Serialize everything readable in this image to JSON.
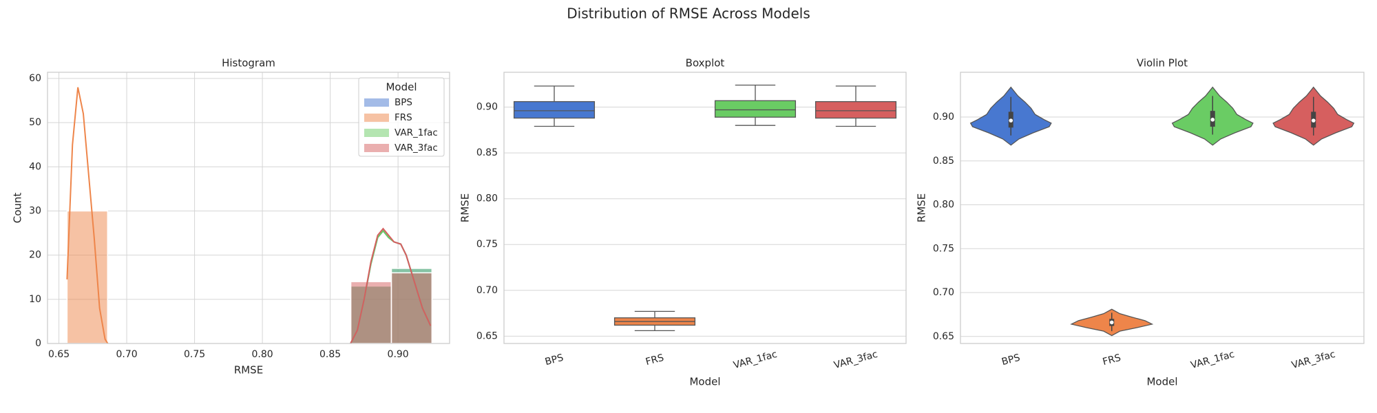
{
  "title": "Distribution of RMSE Across Models",
  "chart_data": [
    {
      "type": "histogram",
      "title": "Histogram",
      "x_label": "RMSE",
      "y_label": "Count",
      "bins": [
        0.656,
        0.6859,
        0.7158,
        0.7457,
        0.7756,
        0.8054,
        0.8353,
        0.8652,
        0.8951,
        0.925
      ],
      "series": [
        {
          "name": "BPS",
          "color": "#4878d0",
          "values": [
            0,
            0,
            0,
            0,
            0,
            0,
            0,
            13,
            17
          ],
          "kde": {
            "x": [
              0.865,
              0.87,
              0.875,
              0.88,
              0.885,
              0.889,
              0.893,
              0.897,
              0.902,
              0.906,
              0.912,
              0.918,
              0.924
            ],
            "y": [
              0,
              3,
              10,
              18,
              24,
              25.5,
              24,
              23,
              22.5,
              20,
              14,
              8,
              4
            ]
          }
        },
        {
          "name": "FRS",
          "color": "#ee854a",
          "values": [
            30,
            0,
            0,
            0,
            0,
            0,
            0,
            0,
            0
          ],
          "kde": {
            "x": [
              0.656,
              0.66,
              0.664,
              0.668,
              0.672,
              0.676,
              0.68,
              0.684,
              0.686
            ],
            "y": [
              14.5,
              45,
              58,
              52,
              38,
              24,
              8,
              1,
              0
            ]
          }
        },
        {
          "name": "VAR_1fac",
          "color": "#6acc64",
          "values": [
            0,
            0,
            0,
            0,
            0,
            0,
            0,
            13,
            17
          ],
          "kde": {
            "x": [
              0.865,
              0.87,
              0.875,
              0.88,
              0.885,
              0.889,
              0.893,
              0.897,
              0.902,
              0.906,
              0.912,
              0.918,
              0.924
            ],
            "y": [
              0,
              3,
              10,
              18,
              24,
              25.5,
              24,
              23,
              22.5,
              20,
              14,
              8,
              4
            ]
          }
        },
        {
          "name": "VAR_3fac",
          "color": "#d65f5f",
          "values": [
            0,
            0,
            0,
            0,
            0,
            0,
            0,
            14,
            16
          ],
          "kde": {
            "x": [
              0.865,
              0.87,
              0.875,
              0.88,
              0.885,
              0.889,
              0.893,
              0.897,
              0.902,
              0.906,
              0.912,
              0.918,
              0.924
            ],
            "y": [
              0,
              3,
              10,
              18.5,
              24.5,
              26,
              24.5,
              23,
              22.5,
              20,
              14,
              8,
              4
            ]
          }
        }
      ],
      "legend_title": "Model",
      "legend": "upper right",
      "grid": true,
      "xlim": [
        0.6416,
        0.938
      ],
      "xticks": [
        0.65,
        {
          "value": 0.7,
          "label": "0.70"
        },
        0.75,
        {
          "value": 0.8,
          "label": "0.80"
        },
        0.85,
        {
          "value": 0.9,
          "label": "0.90"
        }
      ],
      "ylim": [
        0,
        61.4
      ],
      "yticks": [
        0,
        10,
        20,
        30,
        40,
        50,
        60
      ]
    },
    {
      "type": "box",
      "title": "Boxplot",
      "x_label": "Model",
      "y_label": "RMSE",
      "categories": [
        "BPS",
        "FRS",
        "VAR_1fac",
        "VAR_3fac"
      ],
      "colors": [
        "#4878d0",
        "#ee854a",
        "#6acc64",
        "#d65f5f"
      ],
      "stats": [
        {
          "whislo": 0.879,
          "q1": 0.888,
          "med": 0.896,
          "q3": 0.906,
          "whishi": 0.923
        },
        {
          "whislo": 0.656,
          "q1": 0.662,
          "med": 0.666,
          "q3": 0.67,
          "whishi": 0.677
        },
        {
          "whislo": 0.88,
          "q1": 0.889,
          "med": 0.897,
          "q3": 0.907,
          "whishi": 0.924
        },
        {
          "whislo": 0.879,
          "q1": 0.888,
          "med": 0.896,
          "q3": 0.906,
          "whishi": 0.923
        }
      ],
      "grid": true,
      "ylim": [
        0.642,
        0.938
      ],
      "yticks": [
        0.65,
        {
          "value": 0.7,
          "label": "0.70"
        },
        0.75,
        {
          "value": 0.8,
          "label": "0.80"
        },
        0.85,
        {
          "value": 0.9,
          "label": "0.90"
        }
      ]
    },
    {
      "type": "violin",
      "title": "Violin Plot",
      "x_label": "Model",
      "y_label": "RMSE",
      "categories": [
        "BPS",
        "FRS",
        "VAR_1fac",
        "VAR_3fac"
      ],
      "colors": [
        "#4878d0",
        "#ee854a",
        "#6acc64",
        "#d65f5f"
      ],
      "stats": [
        {
          "whislo": 0.879,
          "q1": 0.888,
          "med": 0.896,
          "q3": 0.906,
          "whishi": 0.923
        },
        {
          "whislo": 0.656,
          "q1": 0.662,
          "med": 0.666,
          "q3": 0.67,
          "whishi": 0.677
        },
        {
          "whislo": 0.88,
          "q1": 0.889,
          "med": 0.897,
          "q3": 0.907,
          "whishi": 0.924
        },
        {
          "whislo": 0.879,
          "q1": 0.888,
          "med": 0.896,
          "q3": 0.906,
          "whishi": 0.923
        }
      ],
      "profiles": [
        {
          "y": [
            0.868,
            0.875,
            0.882,
            0.889,
            0.893,
            0.897,
            0.903,
            0.91,
            0.917,
            0.924,
            0.934
          ],
          "width": [
            0,
            0.08,
            0.22,
            0.38,
            0.4,
            0.33,
            0.24,
            0.2,
            0.14,
            0.07,
            0
          ]
        },
        {
          "y": [
            0.651,
            0.656,
            0.66,
            0.664,
            0.668,
            0.672,
            0.676,
            0.681
          ],
          "width": [
            0,
            0.08,
            0.25,
            0.4,
            0.33,
            0.2,
            0.08,
            0
          ]
        },
        {
          "y": [
            0.868,
            0.875,
            0.882,
            0.889,
            0.893,
            0.897,
            0.903,
            0.91,
            0.917,
            0.924,
            0.934
          ],
          "width": [
            0,
            0.08,
            0.22,
            0.38,
            0.4,
            0.33,
            0.24,
            0.2,
            0.14,
            0.07,
            0
          ]
        },
        {
          "y": [
            0.868,
            0.875,
            0.882,
            0.889,
            0.893,
            0.897,
            0.903,
            0.91,
            0.917,
            0.924,
            0.934
          ],
          "width": [
            0,
            0.08,
            0.22,
            0.38,
            0.4,
            0.33,
            0.24,
            0.2,
            0.14,
            0.07,
            0
          ]
        }
      ],
      "grid": true,
      "ylim": [
        0.642,
        0.951
      ],
      "yticks": [
        0.65,
        {
          "value": 0.7,
          "label": "0.70"
        },
        0.75,
        {
          "value": 0.8,
          "label": "0.80"
        },
        0.85,
        {
          "value": 0.9,
          "label": "0.90"
        }
      ]
    }
  ]
}
